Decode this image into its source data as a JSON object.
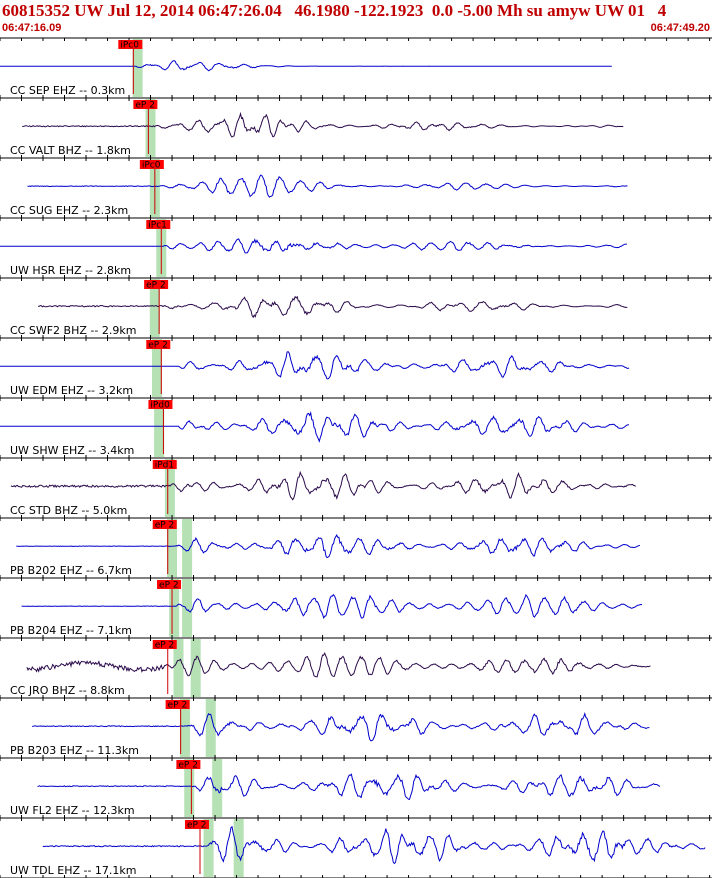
{
  "header": {
    "title": "60815352 UW Jul 12, 2014 06:47:26.04   46.1980 -122.1923  0.0 -5.00 Mh su amyw UW 01   4",
    "start_time": "06:47:16.09",
    "end_time": "06:47:49.20"
  },
  "colors": {
    "title": "#c00000",
    "trace_blue": "#0000cc",
    "trace_dark": "#2a0a4a",
    "pick_box": "#ff0000",
    "pick_line": "#cc0000",
    "window_green": "#a8dca8",
    "grid": "#000000"
  },
  "chart_data": {
    "type": "line",
    "time_range_s": [
      0,
      33.11
    ],
    "tick_interval_s": 1,
    "traces": [
      {
        "label": "CC SEP EHZ -- 0.3km",
        "pick": "iPc0",
        "pick_s": 6.2,
        "style": "blue",
        "pre_noise": 0.0,
        "amp": 1.0,
        "signal_start_s": 6.3,
        "signal_end_s": 28.5,
        "decay": 0.45,
        "green_s": [
          6.4
        ]
      },
      {
        "label": "CC VALT BHZ -- 1.8km",
        "pick": "eP 2",
        "pick_s": 6.9,
        "style": "dark",
        "pre_noise": 0.08,
        "amp": 0.8,
        "signal_start_s": 7.2,
        "signal_end_s": 29.0,
        "decay": 0.12,
        "green_s": [
          7.0
        ]
      },
      {
        "label": "CC SUG EHZ -- 2.3km",
        "pick": "iPc0",
        "pick_s": 7.2,
        "style": "blue",
        "pre_noise": 0.05,
        "amp": 0.75,
        "signal_start_s": 7.4,
        "signal_end_s": 29.2,
        "decay": 0.12,
        "green_s": [
          7.2
        ]
      },
      {
        "label": "UW HSR EHZ -- 2.8km",
        "pick": "iPc1",
        "pick_s": 7.5,
        "style": "blue",
        "pre_noise": 0.0,
        "amp": 0.65,
        "signal_start_s": 7.6,
        "signal_end_s": 29.2,
        "decay": 0.08,
        "green_s": [
          7.5
        ]
      },
      {
        "label": "CC SWF2 BHZ -- 2.9km",
        "pick": "eP 2",
        "pick_s": 7.4,
        "style": "dark",
        "pre_noise": 0.1,
        "amp": 0.7,
        "signal_start_s": 7.6,
        "signal_end_s": 29.2,
        "decay": 0.08,
        "green_s": [
          7.2
        ]
      },
      {
        "label": "UW EDM EHZ -- 3.2km",
        "pick": "eP 2",
        "pick_s": 7.5,
        "style": "blue",
        "pre_noise": 0.0,
        "amp": 0.7,
        "signal_start_s": 8.3,
        "signal_end_s": 29.3,
        "decay": 0.04,
        "green_s": [
          7.3
        ]
      },
      {
        "label": "UW SHW EHZ -- 3.4km",
        "pick": "iPd0",
        "pick_s": 7.6,
        "style": "blue",
        "pre_noise": 0.0,
        "amp": 0.75,
        "signal_start_s": 8.3,
        "signal_end_s": 29.3,
        "decay": 0.03,
        "green_s": [
          7.4
        ]
      },
      {
        "label": "CC STD BHZ -- 5.0km",
        "pick": "iPd1",
        "pick_s": 7.8,
        "style": "dark",
        "pre_noise": 0.15,
        "amp": 0.7,
        "signal_start_s": 7.9,
        "signal_end_s": 29.6,
        "decay": 0.03,
        "green_s": [
          7.9
        ]
      },
      {
        "label": "PB B202 EHZ -- 6.7km",
        "pick": "eP 2",
        "pick_s": 7.8,
        "style": "blue",
        "pre_noise": 0.03,
        "amp": 0.7,
        "signal_start_s": 8.1,
        "signal_end_s": 29.8,
        "decay": 0.03,
        "green_s": [
          8.0,
          8.7
        ]
      },
      {
        "label": "PB B204 EHZ -- 7.1km",
        "pick": "eP 2",
        "pick_s": 8.0,
        "style": "blue",
        "pre_noise": 0.03,
        "amp": 0.65,
        "signal_start_s": 8.2,
        "signal_end_s": 29.9,
        "decay": 0.03,
        "green_s": [
          8.1,
          8.7
        ]
      },
      {
        "label": "CC JRO BHZ -- 8.8km",
        "pick": "eP 2",
        "pick_s": 7.8,
        "style": "dark",
        "pre_noise": 0.35,
        "amp": 0.55,
        "signal_start_s": 7.9,
        "signal_end_s": 30.3,
        "decay": 0.02,
        "green_s": [
          8.3,
          9.1
        ]
      },
      {
        "label": "PB B203 EHZ -- 11.3km",
        "pick": "eP 2",
        "pick_s": 8.4,
        "style": "blue",
        "pre_noise": 0.06,
        "amp": 0.65,
        "signal_start_s": 8.7,
        "signal_end_s": 30.2,
        "decay": 0.02,
        "green_s": [
          8.6,
          9.8
        ]
      },
      {
        "label": "UW FL2 EHZ -- 12.3km",
        "pick": "eP 2",
        "pick_s": 8.9,
        "style": "blue",
        "pre_noise": 0.06,
        "amp": 0.7,
        "signal_start_s": 9.1,
        "signal_end_s": 30.7,
        "decay": 0.02,
        "green_s": [
          8.8,
          10.1
        ]
      },
      {
        "label": "UW TDL EHZ -- 17.1km",
        "pick": "eP 2",
        "pick_s": 9.3,
        "style": "blue",
        "pre_noise": 0.08,
        "amp": 0.75,
        "signal_start_s": 9.6,
        "signal_end_s": 32.8,
        "decay": 0.01,
        "green_s": [
          9.7,
          11.1
        ]
      }
    ]
  }
}
